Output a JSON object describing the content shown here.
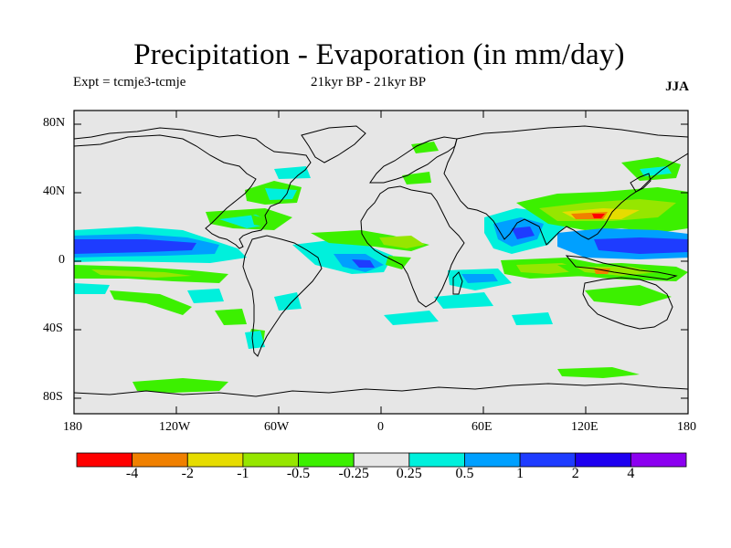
{
  "title": "Precipitation - Evaporation (in mm/day)",
  "experiment": "Expt = tcmje3-tcmje",
  "period": "21kyr BP - 21kyr BP",
  "season": "JJA",
  "lat_labels": [
    "80N",
    "40N",
    "0",
    "40S",
    "80S"
  ],
  "lon_labels": [
    "180",
    "120W",
    "60W",
    "0",
    "60E",
    "120E",
    "180"
  ],
  "colorbar": {
    "colors": [
      "#ff0000",
      "#f08000",
      "#e6dc00",
      "#96e600",
      "#3cf000",
      "#e6e6e6",
      "#00f0dc",
      "#00a0ff",
      "#1e3cff",
      "#1e00f0",
      "#8c00f0"
    ],
    "labels": [
      "-4",
      "-2",
      "-1",
      "-0.5",
      "-0.25",
      "0.25",
      "0.5",
      "1",
      "2",
      "4"
    ]
  }
}
